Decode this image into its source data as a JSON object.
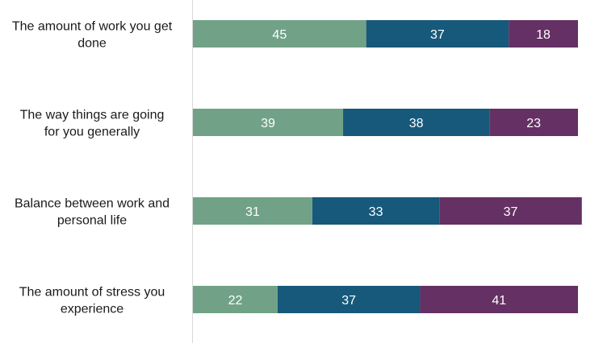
{
  "chart_data": {
    "type": "bar",
    "orientation": "horizontal",
    "stacked": true,
    "categories": [
      [
        "The amount of work you get",
        "done"
      ],
      [
        "The way things are going",
        "for you generally"
      ],
      [
        "Balance between work and",
        "personal life"
      ],
      [
        "The amount of stress you",
        "experience"
      ]
    ],
    "series": [
      {
        "values": [
          45,
          39,
          31,
          22
        ],
        "color": "#71a287"
      },
      {
        "values": [
          37,
          38,
          33,
          37
        ],
        "color": "#17597a"
      },
      {
        "values": [
          18,
          23,
          37,
          41
        ],
        "color": "#653064"
      }
    ],
    "xlim": [
      0,
      100
    ],
    "grid": false,
    "legend": "none"
  }
}
